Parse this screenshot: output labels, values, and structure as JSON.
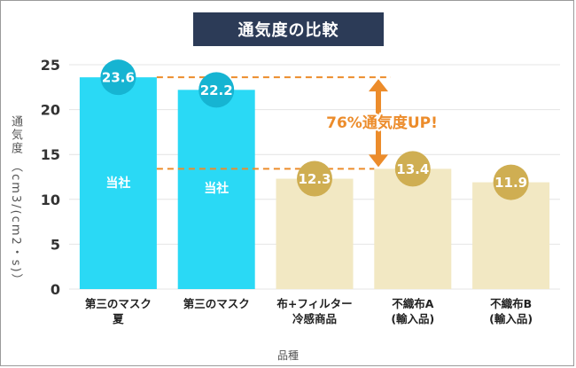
{
  "chart_data": {
    "type": "bar",
    "title": "通気度の比較",
    "ylabel": "通気度 （cm3/(cm2・s)）",
    "xlabel": "品種",
    "ylim": [
      0,
      25
    ],
    "yticks": [
      0,
      5,
      10,
      15,
      20,
      25
    ],
    "categories": [
      [
        "第三のマスク",
        "夏"
      ],
      [
        "第三のマスク"
      ],
      [
        "布+フィルター",
        "冷感商品"
      ],
      [
        "不織布A",
        "(輸入品)"
      ],
      [
        "不織布B",
        "(輸入品)"
      ]
    ],
    "values": [
      23.6,
      22.2,
      12.3,
      13.4,
      11.9
    ],
    "value_labels": [
      "23.6",
      "22.2",
      "12.3",
      "13.4",
      "11.9"
    ],
    "inbar_labels": [
      "当社",
      "当社",
      "",
      "",
      ""
    ],
    "annotation": "76%通気度UP!",
    "grid": true,
    "colors": {
      "own_bar": "#2ad9f5",
      "own_badge": "#16b4d2",
      "other_bar": "#f2e8c3",
      "other_badge": "#cfae52",
      "accent": "#ec8c2b",
      "grid": "#e4e4e4"
    },
    "bar_group": [
      "own",
      "own",
      "other",
      "other",
      "other"
    ]
  }
}
